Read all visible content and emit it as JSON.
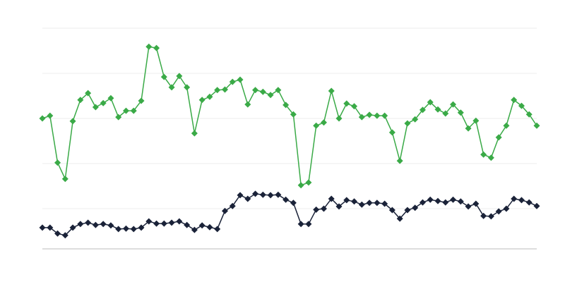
{
  "chart_data": {
    "type": "line",
    "categories": [
      null,
      null,
      null,
      null,
      null,
      null,
      null,
      null,
      null,
      null,
      null,
      null,
      null,
      null,
      null,
      null,
      null,
      null,
      null,
      null,
      null,
      null,
      null,
      null,
      null,
      null,
      null,
      null,
      null,
      null,
      null,
      null,
      null,
      null,
      null,
      null,
      null,
      null,
      null,
      null,
      null,
      null,
      null,
      null,
      null,
      null,
      null,
      null,
      null,
      null,
      null,
      null,
      null,
      null,
      null,
      null,
      null,
      null,
      null,
      null,
      null,
      null,
      null,
      null,
      null,
      null
    ],
    "series": [
      {
        "color": "#3aaa47",
        "values": [
          3.0,
          3.06,
          2.02,
          1.66,
          2.94,
          3.41,
          3.56,
          3.25,
          3.34,
          3.45,
          3.03,
          3.17,
          3.17,
          3.39,
          4.59,
          4.56,
          3.92,
          3.69,
          3.94,
          3.69,
          2.67,
          3.41,
          3.48,
          3.63,
          3.64,
          3.81,
          3.86,
          3.31,
          3.63,
          3.59,
          3.52,
          3.63,
          3.3,
          3.09,
          1.52,
          1.58,
          2.84,
          2.91,
          3.61,
          3.0,
          3.33,
          3.27,
          3.03,
          3.08,
          3.06,
          3.06,
          2.69,
          2.06,
          2.89,
          2.98,
          3.19,
          3.36,
          3.2,
          3.11,
          3.31,
          3.13,
          2.78,
          2.95,
          2.2,
          2.13,
          2.58,
          2.84,
          3.41,
          3.28,
          3.09,
          2.84
        ]
      },
      {
        "color": "#1a2238",
        "values": [
          0.58,
          0.58,
          0.45,
          0.41,
          0.58,
          0.66,
          0.69,
          0.64,
          0.66,
          0.63,
          0.55,
          0.56,
          0.55,
          0.58,
          0.72,
          0.67,
          0.67,
          0.69,
          0.72,
          0.64,
          0.53,
          0.63,
          0.59,
          0.55,
          0.95,
          1.06,
          1.3,
          1.22,
          1.33,
          1.31,
          1.3,
          1.31,
          1.2,
          1.13,
          0.66,
          0.66,
          0.98,
          1.0,
          1.22,
          1.05,
          1.19,
          1.16,
          1.09,
          1.13,
          1.13,
          1.11,
          0.97,
          0.78,
          0.97,
          1.02,
          1.14,
          1.2,
          1.17,
          1.14,
          1.2,
          1.16,
          1.05,
          1.11,
          0.84,
          0.83,
          0.94,
          1.0,
          1.22,
          1.19,
          1.14,
          1.06
        ]
      }
    ],
    "ylim": [
      0.11,
      5
    ],
    "yticks": [
      1,
      2,
      3,
      4,
      5
    ],
    "grid": true
  }
}
